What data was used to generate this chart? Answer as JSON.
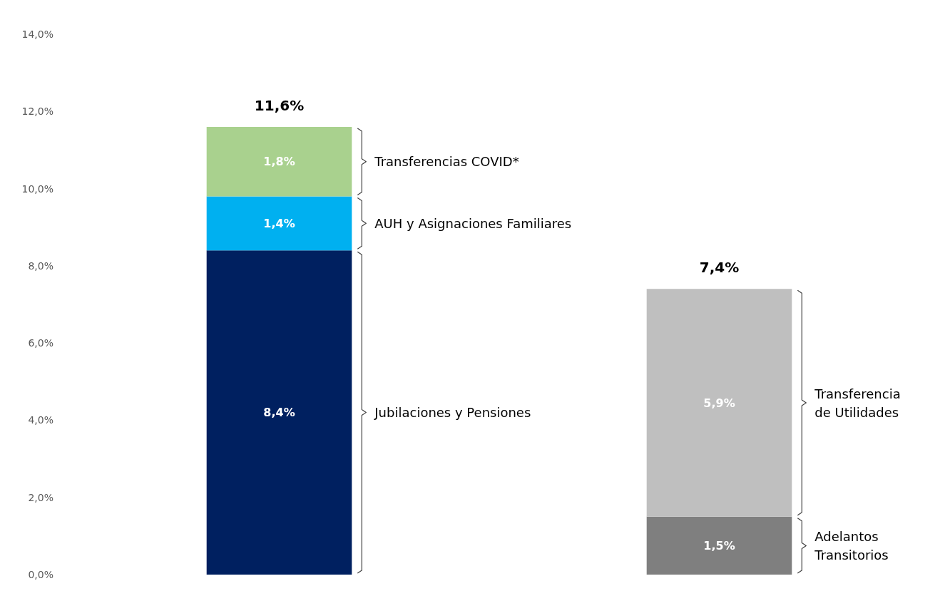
{
  "chart_data": {
    "type": "bar",
    "stacked": true,
    "categories": [
      null,
      null
    ],
    "series": [
      {
        "name": "Jubilaciones y Pensiones",
        "color": "#002060",
        "values": [
          8.4,
          null
        ],
        "value_labels": [
          "8,4%",
          null
        ]
      },
      {
        "name": "AUH y Asignaciones Familiares",
        "color": "#00b0f0",
        "values": [
          1.4,
          null
        ],
        "value_labels": [
          "1,4%",
          null
        ]
      },
      {
        "name": "Transferencias COVID*",
        "color": "#a9d18e",
        "values": [
          1.8,
          null
        ],
        "value_labels": [
          "1,8%",
          null
        ]
      },
      {
        "name": "Adelantos Transitorios",
        "color": "#7f7f7f",
        "values": [
          null,
          1.5
        ],
        "value_labels": [
          null,
          "1,5%"
        ]
      },
      {
        "name": "Transferencia de Utilidades",
        "color": "#bfbfbf",
        "values": [
          null,
          5.9
        ],
        "value_labels": [
          null,
          "5,9%"
        ]
      }
    ],
    "totals": [
      "11,6%",
      "7,4%"
    ],
    "ylim": [
      0,
      14
    ],
    "yticks": [
      {
        "value": 0,
        "label": "0,0%"
      },
      {
        "value": 2,
        "label": "2,0%"
      },
      {
        "value": 4,
        "label": "4,0%"
      },
      {
        "value": 6,
        "label": "6,0%"
      },
      {
        "value": 8,
        "label": "8,0%"
      },
      {
        "value": 10,
        "label": "10,0%"
      },
      {
        "value": 12,
        "label": "12,0%"
      },
      {
        "value": 14,
        "label": "14,0%"
      }
    ],
    "grid": false,
    "legend": false
  }
}
